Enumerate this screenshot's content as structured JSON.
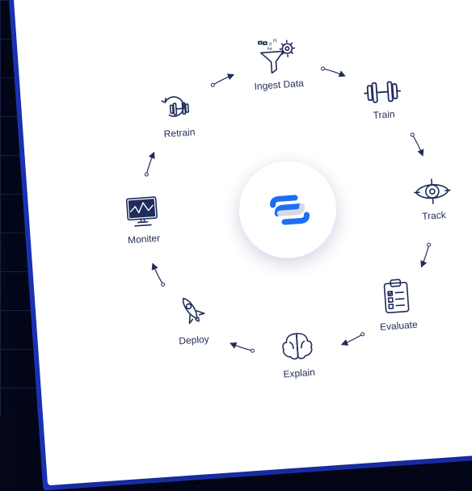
{
  "diagram": {
    "type": "cycle",
    "background_color": "#04071a",
    "grid_color": "#1a2240",
    "grid_spacing": 48,
    "card_bg": "#ffffff",
    "card_edge_color": "#1f3bd6",
    "card_rotation_deg": -4,
    "stroke_color": "#1f2c5a",
    "arrow_stroke_width": 1.2,
    "label_color": "#1f2c5a",
    "label_fontsize": 12,
    "radius": 180,
    "center_logo": {
      "primary_color": "#1e6df6",
      "secondary_color": "#d4dbe8",
      "chip_bg": "#ffffff",
      "chip_shadow": "0 6px 22px rgba(32,48,120,0.22)",
      "chip_diameter": 120
    },
    "nodes": [
      {
        "id": "ingest",
        "label": "Ingest Data",
        "angle_deg": -90,
        "icon": "funnel-gear"
      },
      {
        "id": "train",
        "label": "Train",
        "angle_deg": -45,
        "icon": "dumbbell"
      },
      {
        "id": "track",
        "label": "Track",
        "angle_deg": 0,
        "icon": "eye-target"
      },
      {
        "id": "evaluate",
        "label": "Evaluate",
        "angle_deg": 45,
        "icon": "clipboard-check"
      },
      {
        "id": "explain",
        "label": "Explain",
        "angle_deg": 90,
        "icon": "brain"
      },
      {
        "id": "deploy",
        "label": "Deploy",
        "angle_deg": 135,
        "icon": "rocket"
      },
      {
        "id": "monitor",
        "label": "Moniter",
        "angle_deg": 180,
        "icon": "monitor-chart"
      },
      {
        "id": "retrain",
        "label": "Retrain",
        "angle_deg": 225,
        "icon": "dumbbell-cycle"
      }
    ],
    "arrow_gap_deg": 18
  }
}
